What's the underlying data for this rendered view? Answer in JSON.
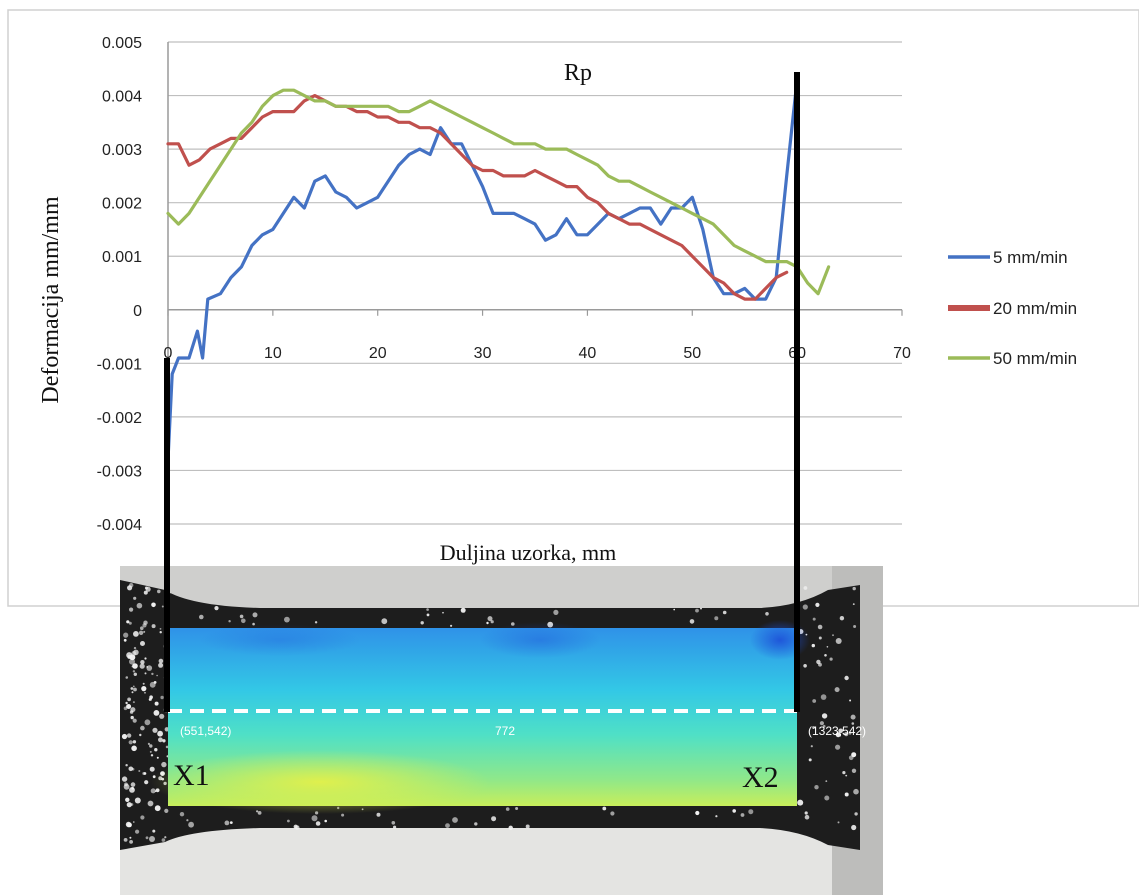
{
  "chart_data": {
    "type": "line",
    "title": "Rp",
    "xlabel": "Duljina uzorka, mm",
    "ylabel": "Deformacija mm/mm",
    "xlim": [
      0,
      70
    ],
    "ylim": [
      -0.004,
      0.005
    ],
    "xticks": [
      "0",
      "10",
      "20",
      "30",
      "40",
      "50",
      "60",
      "70"
    ],
    "yticks": [
      "0.005",
      "0.004",
      "0.003",
      "0.002",
      "0.001",
      "0",
      "-0.001",
      "-0.002",
      "-0.003",
      "-0.004"
    ],
    "grid": true,
    "legend_position": "right",
    "series": [
      {
        "name": "5 mm/min",
        "color": "#4472C4",
        "points": [
          [
            0,
            -0.0028
          ],
          [
            0.4,
            -0.0012
          ],
          [
            1,
            -0.0009
          ],
          [
            2,
            -0.0009
          ],
          [
            2.8,
            -0.0004
          ],
          [
            3.3,
            -0.0009
          ],
          [
            3.8,
            0.0002
          ],
          [
            5,
            0.0003
          ],
          [
            6,
            0.0006
          ],
          [
            7,
            0.0008
          ],
          [
            8,
            0.0012
          ],
          [
            9,
            0.0014
          ],
          [
            10,
            0.0015
          ],
          [
            11,
            0.0018
          ],
          [
            12,
            0.0021
          ],
          [
            13,
            0.0019
          ],
          [
            14,
            0.0024
          ],
          [
            15,
            0.0025
          ],
          [
            16,
            0.0022
          ],
          [
            17,
            0.0021
          ],
          [
            18,
            0.0019
          ],
          [
            19,
            0.002
          ],
          [
            20,
            0.0021
          ],
          [
            21,
            0.0024
          ],
          [
            22,
            0.0027
          ],
          [
            23,
            0.0029
          ],
          [
            24,
            0.003
          ],
          [
            25,
            0.0029
          ],
          [
            26,
            0.0034
          ],
          [
            27,
            0.0031
          ],
          [
            28,
            0.0031
          ],
          [
            29,
            0.0027
          ],
          [
            30,
            0.0023
          ],
          [
            31,
            0.0018
          ],
          [
            32,
            0.0018
          ],
          [
            33,
            0.0018
          ],
          [
            34,
            0.0017
          ],
          [
            35,
            0.0016
          ],
          [
            36,
            0.0013
          ],
          [
            37,
            0.0014
          ],
          [
            38,
            0.0017
          ],
          [
            39,
            0.0014
          ],
          [
            40,
            0.0014
          ],
          [
            41,
            0.0016
          ],
          [
            42,
            0.0018
          ],
          [
            43,
            0.0017
          ],
          [
            44,
            0.0018
          ],
          [
            45,
            0.0019
          ],
          [
            46,
            0.0019
          ],
          [
            47,
            0.0016
          ],
          [
            48,
            0.0019
          ],
          [
            49,
            0.0019
          ],
          [
            50,
            0.0021
          ],
          [
            51,
            0.0015
          ],
          [
            52,
            0.0006
          ],
          [
            53,
            0.0003
          ],
          [
            54,
            0.0003
          ],
          [
            55,
            0.0004
          ],
          [
            56,
            0.0002
          ],
          [
            57,
            0.0002
          ],
          [
            58,
            0.0006
          ],
          [
            59,
            0.0025
          ],
          [
            60,
            0.0043
          ]
        ]
      },
      {
        "name": "20 mm/min",
        "color": "#C0504D",
        "points": [
          [
            0,
            0.0031
          ],
          [
            1,
            0.0031
          ],
          [
            2,
            0.0027
          ],
          [
            3,
            0.0028
          ],
          [
            4,
            0.003
          ],
          [
            5,
            0.0031
          ],
          [
            6,
            0.0032
          ],
          [
            7,
            0.0032
          ],
          [
            8,
            0.0034
          ],
          [
            9,
            0.0036
          ],
          [
            10,
            0.0037
          ],
          [
            11,
            0.0037
          ],
          [
            12,
            0.0037
          ],
          [
            13,
            0.0039
          ],
          [
            14,
            0.004
          ],
          [
            15,
            0.0039
          ],
          [
            16,
            0.0038
          ],
          [
            17,
            0.0038
          ],
          [
            18,
            0.0037
          ],
          [
            19,
            0.0037
          ],
          [
            20,
            0.0036
          ],
          [
            21,
            0.0036
          ],
          [
            22,
            0.0035
          ],
          [
            23,
            0.0035
          ],
          [
            24,
            0.0034
          ],
          [
            25,
            0.0034
          ],
          [
            26,
            0.0033
          ],
          [
            27,
            0.0031
          ],
          [
            28,
            0.0029
          ],
          [
            29,
            0.0027
          ],
          [
            30,
            0.0026
          ],
          [
            31,
            0.0026
          ],
          [
            32,
            0.0025
          ],
          [
            33,
            0.0025
          ],
          [
            34,
            0.0025
          ],
          [
            35,
            0.0026
          ],
          [
            36,
            0.0025
          ],
          [
            37,
            0.0024
          ],
          [
            38,
            0.0023
          ],
          [
            39,
            0.0023
          ],
          [
            40,
            0.0021
          ],
          [
            41,
            0.002
          ],
          [
            42,
            0.0018
          ],
          [
            43,
            0.0017
          ],
          [
            44,
            0.0016
          ],
          [
            45,
            0.0016
          ],
          [
            46,
            0.0015
          ],
          [
            47,
            0.0014
          ],
          [
            48,
            0.0013
          ],
          [
            49,
            0.0012
          ],
          [
            50,
            0.001
          ],
          [
            51,
            0.0008
          ],
          [
            52,
            0.0006
          ],
          [
            53,
            0.0005
          ],
          [
            54,
            0.0003
          ],
          [
            55,
            0.0002
          ],
          [
            56,
            0.0002
          ],
          [
            57,
            0.0004
          ],
          [
            58,
            0.0006
          ],
          [
            59,
            0.0007
          ]
        ]
      },
      {
        "name": "50 mm/min",
        "color": "#9BBB59",
        "points": [
          [
            0,
            0.0018
          ],
          [
            1,
            0.0016
          ],
          [
            2,
            0.0018
          ],
          [
            3,
            0.0021
          ],
          [
            4,
            0.0024
          ],
          [
            5,
            0.0027
          ],
          [
            6,
            0.003
          ],
          [
            7,
            0.0033
          ],
          [
            8,
            0.0035
          ],
          [
            9,
            0.0038
          ],
          [
            10,
            0.004
          ],
          [
            11,
            0.0041
          ],
          [
            12,
            0.0041
          ],
          [
            13,
            0.004
          ],
          [
            14,
            0.0039
          ],
          [
            15,
            0.0039
          ],
          [
            16,
            0.0038
          ],
          [
            17,
            0.0038
          ],
          [
            18,
            0.0038
          ],
          [
            19,
            0.0038
          ],
          [
            20,
            0.0038
          ],
          [
            21,
            0.0038
          ],
          [
            22,
            0.0037
          ],
          [
            23,
            0.0037
          ],
          [
            24,
            0.0038
          ],
          [
            25,
            0.0039
          ],
          [
            26,
            0.0038
          ],
          [
            27,
            0.0037
          ],
          [
            28,
            0.0036
          ],
          [
            29,
            0.0035
          ],
          [
            30,
            0.0034
          ],
          [
            31,
            0.0033
          ],
          [
            32,
            0.0032
          ],
          [
            33,
            0.0031
          ],
          [
            34,
            0.0031
          ],
          [
            35,
            0.0031
          ],
          [
            36,
            0.003
          ],
          [
            37,
            0.003
          ],
          [
            38,
            0.003
          ],
          [
            39,
            0.0029
          ],
          [
            40,
            0.0028
          ],
          [
            41,
            0.0027
          ],
          [
            42,
            0.0025
          ],
          [
            43,
            0.0024
          ],
          [
            44,
            0.0024
          ],
          [
            45,
            0.0023
          ],
          [
            46,
            0.0022
          ],
          [
            47,
            0.0021
          ],
          [
            48,
            0.002
          ],
          [
            49,
            0.0019
          ],
          [
            50,
            0.0018
          ],
          [
            51,
            0.0017
          ],
          [
            52,
            0.0016
          ],
          [
            53,
            0.0014
          ],
          [
            54,
            0.0012
          ],
          [
            55,
            0.0011
          ],
          [
            56,
            0.001
          ],
          [
            57,
            0.0009
          ],
          [
            58,
            0.0009
          ],
          [
            59,
            0.0009
          ],
          [
            60,
            0.0008
          ],
          [
            61,
            0.0005
          ],
          [
            62,
            0.0003
          ],
          [
            63,
            0.0008
          ]
        ]
      }
    ]
  },
  "image_annotations": {
    "start_marker": "X1",
    "end_marker": "X2",
    "start_coord": "(551,542)",
    "end_coord": "(1323,542)",
    "length_label": "772"
  }
}
